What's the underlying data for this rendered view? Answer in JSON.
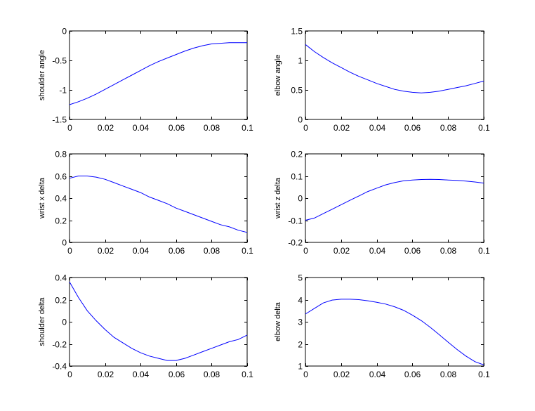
{
  "colors": {
    "line": "#0000ff",
    "axes": "#000000",
    "background": "#ffffff"
  },
  "chart_data": [
    {
      "type": "line",
      "title": "",
      "xlabel": "",
      "ylabel": "shoulder angle",
      "xlim": [
        0,
        0.1
      ],
      "ylim": [
        -1.5,
        0
      ],
      "xticks": [
        "0",
        "0.02",
        "0.04",
        "0.06",
        "0.08",
        "0.1"
      ],
      "yticks": [
        "-1.5",
        "-1",
        "-0.5",
        "0"
      ],
      "grid": false,
      "legend": "none",
      "series": [
        {
          "x": [
            0,
            0.005,
            0.01,
            0.015,
            0.02,
            0.025,
            0.03,
            0.035,
            0.04,
            0.045,
            0.05,
            0.055,
            0.06,
            0.065,
            0.07,
            0.075,
            0.08,
            0.085,
            0.09,
            0.095,
            0.1
          ],
          "y": [
            -1.25,
            -1.2,
            -1.14,
            -1.07,
            -0.99,
            -0.91,
            -0.83,
            -0.75,
            -0.67,
            -0.59,
            -0.52,
            -0.46,
            -0.4,
            -0.34,
            -0.29,
            -0.25,
            -0.22,
            -0.21,
            -0.2,
            -0.2,
            -0.2
          ]
        }
      ]
    },
    {
      "type": "line",
      "title": "",
      "xlabel": "",
      "ylabel": "elbow angle",
      "xlim": [
        0,
        0.1
      ],
      "ylim": [
        0,
        1.5
      ],
      "xticks": [
        "0",
        "0.02",
        "0.04",
        "0.06",
        "0.08",
        "0.1"
      ],
      "yticks": [
        "0",
        "0.5",
        "1",
        "1.5"
      ],
      "grid": false,
      "legend": "none",
      "series": [
        {
          "x": [
            0,
            0.005,
            0.01,
            0.015,
            0.02,
            0.025,
            0.03,
            0.035,
            0.04,
            0.045,
            0.05,
            0.055,
            0.06,
            0.065,
            0.07,
            0.075,
            0.08,
            0.085,
            0.09,
            0.095,
            0.1
          ],
          "y": [
            1.27,
            1.15,
            1.05,
            0.96,
            0.88,
            0.8,
            0.73,
            0.67,
            0.61,
            0.56,
            0.51,
            0.48,
            0.46,
            0.45,
            0.46,
            0.48,
            0.51,
            0.54,
            0.57,
            0.61,
            0.65
          ]
        }
      ]
    },
    {
      "type": "line",
      "title": "",
      "xlabel": "",
      "ylabel": "wrist x delta",
      "xlim": [
        0,
        0.1
      ],
      "ylim": [
        0,
        0.8
      ],
      "xticks": [
        "0",
        "0.02",
        "0.04",
        "0.06",
        "0.08",
        "0.1"
      ],
      "yticks": [
        "0",
        "0.2",
        "0.4",
        "0.6",
        "0.8"
      ],
      "grid": false,
      "legend": "none",
      "series": [
        {
          "x": [
            0,
            0.005,
            0.01,
            0.015,
            0.02,
            0.025,
            0.03,
            0.035,
            0.04,
            0.045,
            0.05,
            0.055,
            0.06,
            0.065,
            0.07,
            0.075,
            0.08,
            0.085,
            0.09,
            0.095,
            0.1
          ],
          "y": [
            0.58,
            0.6,
            0.6,
            0.59,
            0.57,
            0.54,
            0.51,
            0.48,
            0.45,
            0.41,
            0.38,
            0.35,
            0.31,
            0.28,
            0.25,
            0.22,
            0.19,
            0.16,
            0.14,
            0.11,
            0.09
          ]
        }
      ]
    },
    {
      "type": "line",
      "title": "",
      "xlabel": "",
      "ylabel": "wrist z delta",
      "xlim": [
        0,
        0.1
      ],
      "ylim": [
        -0.2,
        0.2
      ],
      "xticks": [
        "0",
        "0.02",
        "0.04",
        "0.06",
        "0.08",
        "0.1"
      ],
      "yticks": [
        "-0.2",
        "-0.1",
        "0",
        "0.1",
        "0.2"
      ],
      "grid": false,
      "legend": "none",
      "series": [
        {
          "x": [
            0,
            0.005,
            0.01,
            0.015,
            0.02,
            0.025,
            0.03,
            0.035,
            0.04,
            0.045,
            0.05,
            0.055,
            0.06,
            0.065,
            0.07,
            0.075,
            0.08,
            0.085,
            0.09,
            0.095,
            0.1
          ],
          "y": [
            -0.1,
            -0.09,
            -0.07,
            -0.05,
            -0.03,
            -0.01,
            0.01,
            0.03,
            0.045,
            0.06,
            0.07,
            0.078,
            0.082,
            0.084,
            0.085,
            0.084,
            0.082,
            0.08,
            0.077,
            0.073,
            0.068
          ]
        }
      ]
    },
    {
      "type": "line",
      "title": "",
      "xlabel": "",
      "ylabel": "shoulder delta",
      "xlim": [
        0,
        0.1
      ],
      "ylim": [
        -0.4,
        0.4
      ],
      "xticks": [
        "0",
        "0.02",
        "0.04",
        "0.06",
        "0.08",
        "0.1"
      ],
      "yticks": [
        "-0.4",
        "-0.2",
        "0",
        "0.2",
        "0.4"
      ],
      "grid": false,
      "legend": "none",
      "series": [
        {
          "x": [
            0,
            0.005,
            0.01,
            0.015,
            0.02,
            0.025,
            0.03,
            0.035,
            0.04,
            0.045,
            0.05,
            0.055,
            0.06,
            0.065,
            0.07,
            0.075,
            0.08,
            0.085,
            0.09,
            0.095,
            0.1
          ],
          "y": [
            0.36,
            0.22,
            0.1,
            0.01,
            -0.07,
            -0.14,
            -0.19,
            -0.24,
            -0.28,
            -0.31,
            -0.33,
            -0.35,
            -0.35,
            -0.33,
            -0.3,
            -0.27,
            -0.24,
            -0.21,
            -0.18,
            -0.16,
            -0.12
          ]
        }
      ]
    },
    {
      "type": "line",
      "title": "",
      "xlabel": "",
      "ylabel": "elbow delta",
      "xlim": [
        0,
        0.1
      ],
      "ylim": [
        1,
        5
      ],
      "xticks": [
        "0",
        "0.02",
        "0.04",
        "0.06",
        "0.08",
        "0.1"
      ],
      "yticks": [
        "1",
        "2",
        "3",
        "4",
        "5"
      ],
      "grid": false,
      "legend": "none",
      "series": [
        {
          "x": [
            0,
            0.005,
            0.01,
            0.015,
            0.02,
            0.025,
            0.03,
            0.035,
            0.04,
            0.045,
            0.05,
            0.055,
            0.06,
            0.065,
            0.07,
            0.075,
            0.08,
            0.085,
            0.09,
            0.095,
            0.1
          ],
          "y": [
            3.35,
            3.6,
            3.85,
            3.98,
            4.02,
            4.02,
            4.0,
            3.95,
            3.88,
            3.8,
            3.68,
            3.52,
            3.3,
            3.05,
            2.75,
            2.42,
            2.08,
            1.75,
            1.45,
            1.2,
            1.05
          ]
        }
      ]
    }
  ]
}
